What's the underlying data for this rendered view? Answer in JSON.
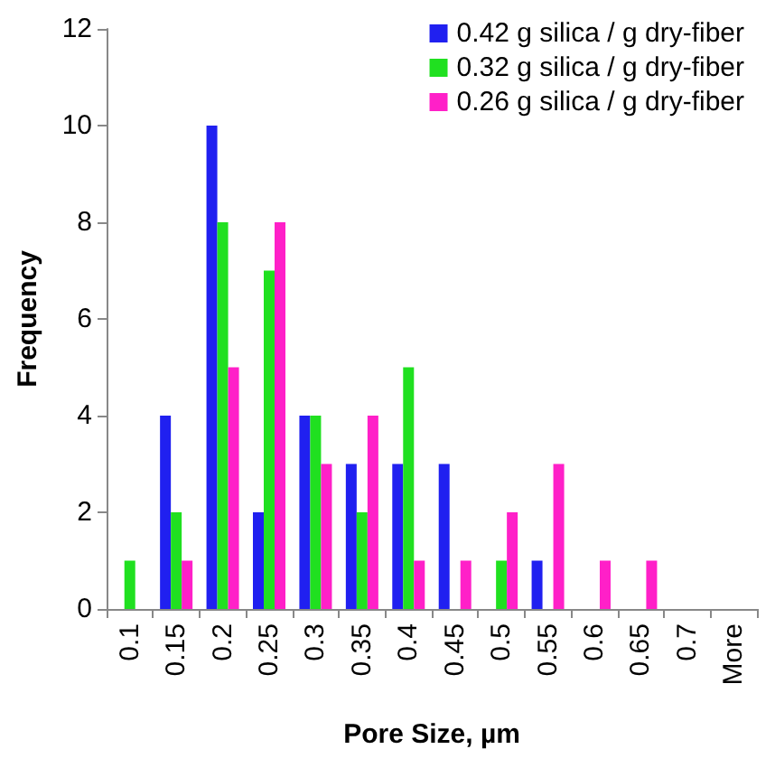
{
  "chart_data": {
    "type": "bar",
    "xlabel": "Pore Size, µm",
    "ylabel": "Frequency",
    "categories": [
      "0.1",
      "0.15",
      "0.2",
      "0.25",
      "0.3",
      "0.35",
      "0.4",
      "0.45",
      "0.5",
      "0.55",
      "0.6",
      "0.65",
      "0.7",
      "More"
    ],
    "series": [
      {
        "name": "0.42 g silica / g dry-fiber",
        "color": "#2020f0",
        "values": [
          0,
          4,
          10,
          2,
          4,
          3,
          3,
          3,
          0,
          1,
          0,
          0,
          0,
          0
        ]
      },
      {
        "name": "0.32 g silica / g dry-fiber",
        "color": "#20e020",
        "values": [
          1,
          2,
          8,
          7,
          4,
          2,
          5,
          0,
          1,
          0,
          0,
          0,
          0,
          0
        ]
      },
      {
        "name": "0.26 g silica / g dry-fiber",
        "color": "#ff20c8",
        "values": [
          0,
          1,
          5,
          8,
          3,
          4,
          1,
          1,
          2,
          3,
          1,
          1,
          0,
          0
        ]
      }
    ],
    "ylim": [
      0,
      12
    ],
    "yticks": [
      0,
      2,
      4,
      6,
      8,
      10,
      12
    ],
    "grid": false,
    "legend": "top right"
  }
}
